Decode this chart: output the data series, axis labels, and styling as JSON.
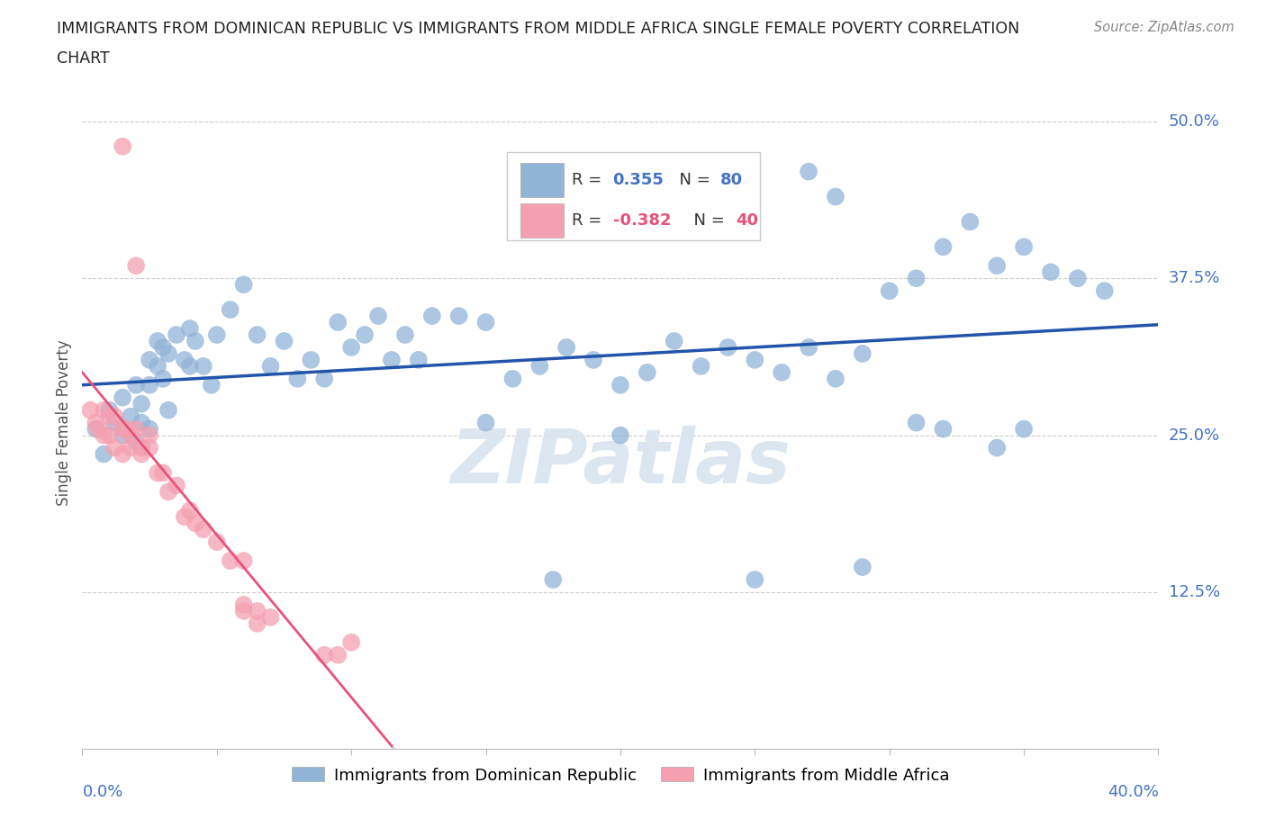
{
  "title_line1": "IMMIGRANTS FROM DOMINICAN REPUBLIC VS IMMIGRANTS FROM MIDDLE AFRICA SINGLE FEMALE POVERTY CORRELATION",
  "title_line2": "CHART",
  "source": "Source: ZipAtlas.com",
  "ylabel": "Single Female Poverty",
  "ytick_vals": [
    0.125,
    0.25,
    0.375,
    0.5
  ],
  "ytick_labels": [
    "12.5%",
    "25.0%",
    "37.5%",
    "50.0%"
  ],
  "color_blue": "#92B4D7",
  "color_pink": "#F4A0B0",
  "color_line_blue": "#2255AA",
  "color_line_pink": "#E8527A",
  "color_line_dashed": "#CCCCCC",
  "color_axis_label": "#4472C4",
  "background": "#FFFFFF",
  "watermark": "ZIPatlas",
  "xlim": [
    0.0,
    0.4
  ],
  "ylim": [
    0.0,
    0.52
  ],
  "blue_x": [
    0.005,
    0.008,
    0.01,
    0.012,
    0.015,
    0.015,
    0.018,
    0.02,
    0.02,
    0.022,
    0.022,
    0.025,
    0.025,
    0.028,
    0.028,
    0.03,
    0.03,
    0.032,
    0.032,
    0.035,
    0.038,
    0.04,
    0.04,
    0.042,
    0.045,
    0.048,
    0.05,
    0.055,
    0.06,
    0.065,
    0.07,
    0.075,
    0.08,
    0.085,
    0.09,
    0.095,
    0.1,
    0.105,
    0.11,
    0.115,
    0.12,
    0.125,
    0.13,
    0.14,
    0.15,
    0.16,
    0.17,
    0.18,
    0.19,
    0.2,
    0.21,
    0.22,
    0.23,
    0.24,
    0.25,
    0.26,
    0.27,
    0.28,
    0.29,
    0.3,
    0.31,
    0.32,
    0.33,
    0.34,
    0.35,
    0.36,
    0.37,
    0.38,
    0.27,
    0.28,
    0.025,
    0.15,
    0.2,
    0.25,
    0.29,
    0.31,
    0.32,
    0.175,
    0.34,
    0.35
  ],
  "blue_y": [
    0.255,
    0.235,
    0.27,
    0.26,
    0.28,
    0.25,
    0.265,
    0.29,
    0.245,
    0.26,
    0.275,
    0.31,
    0.29,
    0.305,
    0.325,
    0.295,
    0.32,
    0.315,
    0.27,
    0.33,
    0.31,
    0.335,
    0.305,
    0.325,
    0.305,
    0.29,
    0.33,
    0.35,
    0.37,
    0.33,
    0.305,
    0.325,
    0.295,
    0.31,
    0.295,
    0.34,
    0.32,
    0.33,
    0.345,
    0.31,
    0.33,
    0.31,
    0.345,
    0.345,
    0.34,
    0.295,
    0.305,
    0.32,
    0.31,
    0.29,
    0.3,
    0.325,
    0.305,
    0.32,
    0.31,
    0.3,
    0.32,
    0.295,
    0.315,
    0.365,
    0.375,
    0.4,
    0.42,
    0.385,
    0.4,
    0.38,
    0.375,
    0.365,
    0.46,
    0.44,
    0.255,
    0.26,
    0.25,
    0.135,
    0.145,
    0.26,
    0.255,
    0.135,
    0.24,
    0.255
  ],
  "pink_x": [
    0.003,
    0.005,
    0.006,
    0.008,
    0.008,
    0.01,
    0.01,
    0.012,
    0.012,
    0.015,
    0.015,
    0.016,
    0.018,
    0.018,
    0.02,
    0.022,
    0.022,
    0.025,
    0.025,
    0.028,
    0.03,
    0.032,
    0.035,
    0.038,
    0.04,
    0.042,
    0.045,
    0.05,
    0.055,
    0.06,
    0.015,
    0.02,
    0.06,
    0.065,
    0.07,
    0.09,
    0.095,
    0.1,
    0.06,
    0.065
  ],
  "pink_y": [
    0.27,
    0.26,
    0.255,
    0.27,
    0.25,
    0.265,
    0.25,
    0.265,
    0.24,
    0.255,
    0.235,
    0.255,
    0.24,
    0.25,
    0.255,
    0.235,
    0.24,
    0.24,
    0.25,
    0.22,
    0.22,
    0.205,
    0.21,
    0.185,
    0.19,
    0.18,
    0.175,
    0.165,
    0.15,
    0.15,
    0.48,
    0.385,
    0.11,
    0.1,
    0.105,
    0.075,
    0.075,
    0.085,
    0.115,
    0.11
  ],
  "pink_line_x_end": 0.115,
  "blue_line_y_start": 0.245,
  "blue_line_y_end": 0.375
}
